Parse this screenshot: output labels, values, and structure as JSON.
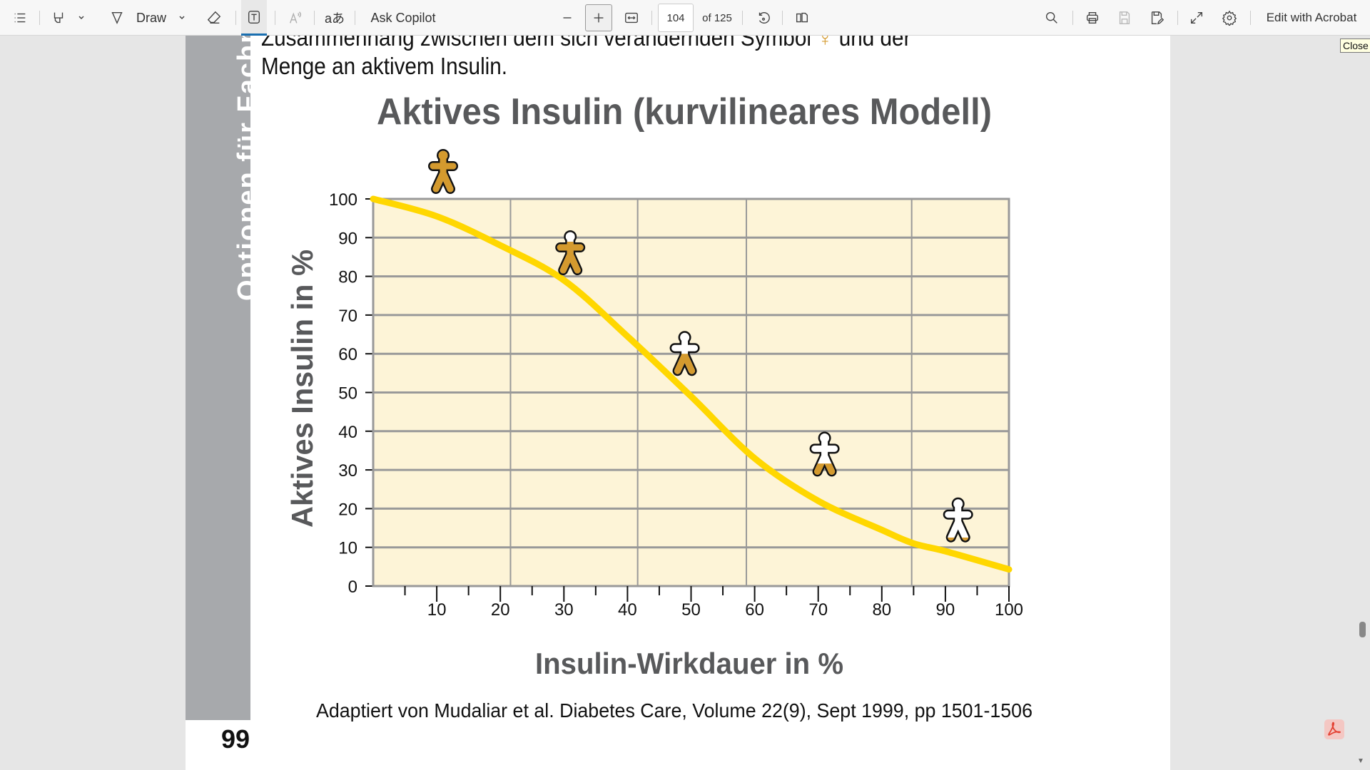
{
  "toolbar": {
    "draw_label": "Draw",
    "copilot_label": "Ask Copilot",
    "page_current": "104",
    "page_total": "of 125",
    "edit_label": "Edit with Acrobat",
    "close_tooltip": "Close"
  },
  "page": {
    "intro_line1": "Zusammenhang zwischen dem sich verändernden Symbol",
    "intro_line1_end": "und der",
    "intro_line2": "Menge an aktivem Insulin.",
    "sidebar_text": "Optionen für Fachp",
    "page_number": "99",
    "citation": "Adaptiert von Mudaliar et al. Diabetes Care, Volume 22(9), Sept 1999, pp 1501-1506"
  },
  "chart_data": {
    "type": "line",
    "title": "Aktives Insulin (kurvilineares Modell)",
    "xlabel": "Insulin-Wirkdauer in %",
    "ylabel": "Aktives Insulin in %",
    "xlim": [
      0,
      100
    ],
    "ylim": [
      0,
      100
    ],
    "xticks": [
      "10",
      "20",
      "30",
      "40",
      "50",
      "60",
      "70",
      "80",
      "90",
      "100"
    ],
    "yticks": [
      "0",
      "10",
      "20",
      "30",
      "40",
      "50",
      "60",
      "70",
      "80",
      "90",
      "100"
    ],
    "vertical_gridlines": [
      21.6,
      41.6,
      58.7,
      84.7
    ],
    "series": [
      {
        "name": "Aktives Insulin",
        "color": "#ffd700",
        "x": [
          0,
          10,
          20,
          30,
          40,
          50,
          60,
          70,
          80,
          85,
          90,
          100
        ],
        "y": [
          100,
          95.5,
          88,
          79,
          64.5,
          49,
          33,
          22,
          14.5,
          11,
          9,
          4.3
        ]
      }
    ],
    "symbols": [
      {
        "x": 11,
        "y": 107,
        "fill": 1.0
      },
      {
        "x": 31,
        "y": 86,
        "fill": 0.75
      },
      {
        "x": 49,
        "y": 60,
        "fill": 0.5
      },
      {
        "x": 71,
        "y": 34,
        "fill": 0.3
      },
      {
        "x": 92,
        "y": 17,
        "fill": 0.12
      }
    ],
    "colors": {
      "plot_bg": "#fdf4d7",
      "grid": "#999999",
      "symbol": "#d49a2e",
      "text": "#58595b"
    }
  }
}
